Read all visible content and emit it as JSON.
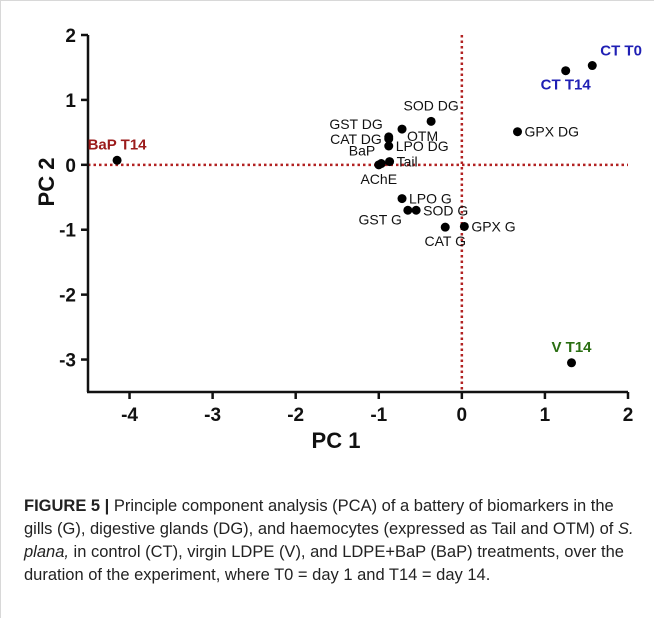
{
  "chart_data": {
    "type": "scatter",
    "xlabel": "PC 1",
    "ylabel": "PC 2",
    "xlim": [
      -4.5,
      2
    ],
    "ylim": [
      -3.5,
      2
    ],
    "x_ticks": [
      -4,
      -3,
      -2,
      -1,
      0,
      1,
      2
    ],
    "y_ticks": [
      2,
      1,
      0,
      -1,
      -2,
      -3
    ],
    "reference_lines": {
      "x": 0,
      "y": 0,
      "style": "dotted",
      "color": "#b22222"
    },
    "points": [
      {
        "label": "CT T0",
        "x": 1.57,
        "y": 1.53,
        "label_color": "#1f1fb4",
        "label_pos": "above-right",
        "bold": true
      },
      {
        "label": "CT T14",
        "x": 1.25,
        "y": 1.45,
        "label_color": "#1f1fb4",
        "label_pos": "below",
        "bold": true
      },
      {
        "label": "BaP T14",
        "x": -4.15,
        "y": 0.07,
        "label_color": "#9b1b1b",
        "label_pos": "above",
        "bold": true
      },
      {
        "label": "V T14",
        "x": 1.32,
        "y": -3.05,
        "label_color": "#2a6e12",
        "label_pos": "above",
        "bold": true
      },
      {
        "label": "GPX DG",
        "x": 0.67,
        "y": 0.51,
        "label_pos": "right"
      },
      {
        "label": "SOD DG",
        "x": -0.37,
        "y": 0.67,
        "label_pos": "above"
      },
      {
        "label": "OTM",
        "x": -0.72,
        "y": 0.55,
        "label_pos": "right-below"
      },
      {
        "label": "GST DG",
        "x": -0.88,
        "y": 0.43,
        "label_pos": "above-left"
      },
      {
        "label": "CAT DG",
        "x": -0.88,
        "y": 0.4,
        "label_pos": "left"
      },
      {
        "label": "LPO DG",
        "x": -0.88,
        "y": 0.29,
        "label_pos": "right"
      },
      {
        "label": "BaP",
        "x": -0.97,
        "y": 0.02,
        "label_pos": "above-left"
      },
      {
        "label": "Tail",
        "x": -0.87,
        "y": 0.05,
        "label_pos": "right"
      },
      {
        "label": "AChE",
        "x": -1.0,
        "y": 0.0,
        "label_pos": "below"
      },
      {
        "label": "LPO G",
        "x": -0.72,
        "y": -0.52,
        "label_pos": "right"
      },
      {
        "label": "GST G",
        "x": -0.65,
        "y": -0.7,
        "label_pos": "left-below"
      },
      {
        "label": "SOD G",
        "x": -0.55,
        "y": -0.7,
        "label_pos": "right"
      },
      {
        "label": "CAT G",
        "x": -0.2,
        "y": -0.96,
        "label_pos": "below"
      },
      {
        "label": "GPX G",
        "x": 0.03,
        "y": -0.95,
        "label_pos": "right"
      }
    ]
  },
  "caption": {
    "figure_label": "FIGURE 5 |",
    "text_1": " Principle component analysis (PCA) of a battery of biomarkers in the gills (G), digestive glands (DG), and haemocytes (expressed as Tail and OTM) of ",
    "species": "S. plana,",
    "text_2": " in control (CT), virgin LDPE (V), and LDPE+BaP (BaP) treatments, over the duration of the experiment, where T0 = day 1 and T14 = day 14."
  }
}
